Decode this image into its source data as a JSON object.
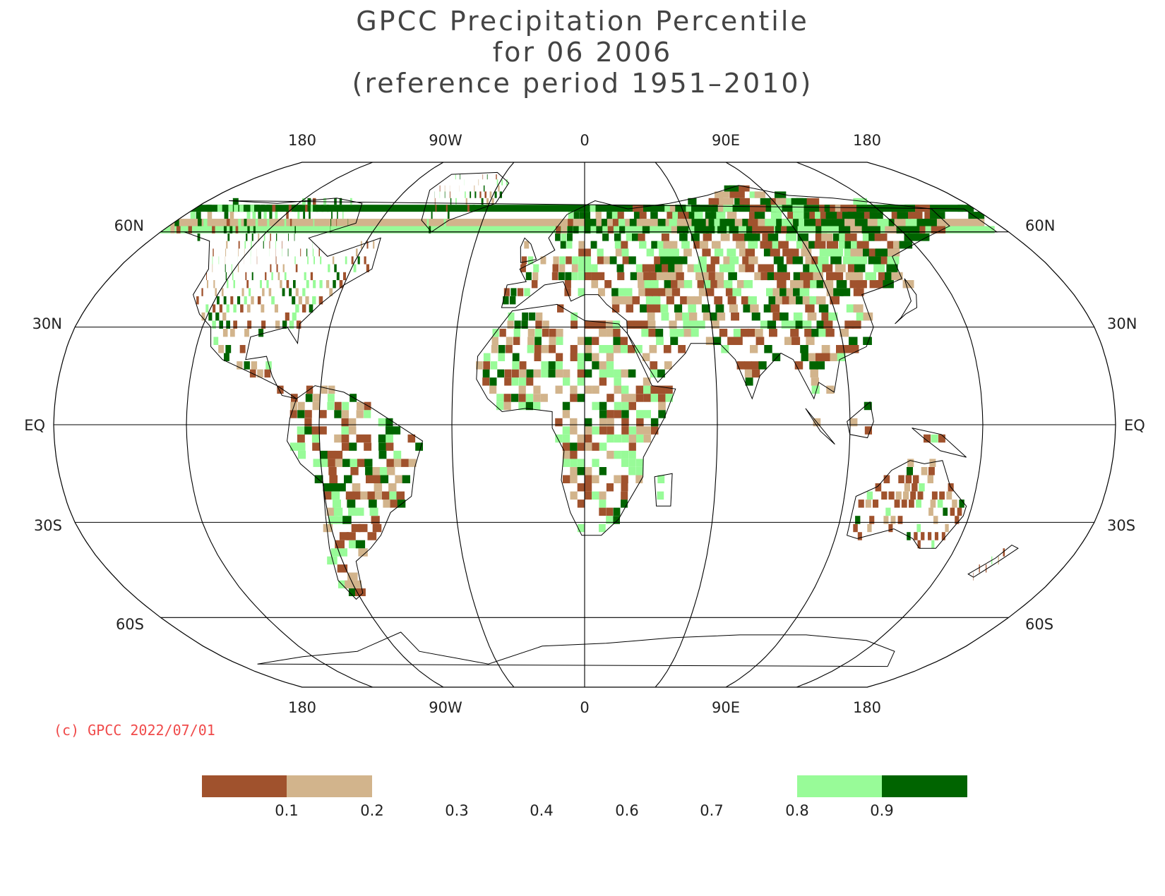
{
  "title": {
    "line1": "GPCC Precipitation Percentile",
    "line2": "for 06 2006",
    "line3": "(reference period 1951–2010)"
  },
  "map": {
    "projection": "Robinson",
    "meridian_labels": [
      "180",
      "90W",
      "0",
      "90E",
      "180"
    ],
    "parallel_labels": [
      "60N",
      "30N",
      "EQ",
      "30S",
      "60S"
    ]
  },
  "copyright": "(c) GPCC 2022/07/01",
  "legend": {
    "tick_labels": [
      "0.1",
      "0.2",
      "0.3",
      "0.4",
      "0.6",
      "0.7",
      "0.8",
      "0.9"
    ],
    "swatches": [
      {
        "range": "< 0.1",
        "color": "#a0522d"
      },
      {
        "range": "0.1 – 0.2",
        "color": "#d2b48c"
      },
      {
        "range": "0.8 – 0.9",
        "color": "#98fb98"
      },
      {
        "range": "> 0.9",
        "color": "#006400"
      }
    ]
  },
  "colors": {
    "very_dry": "#a0522d",
    "dry": "#d2b48c",
    "wet": "#98fb98",
    "very_wet": "#006400"
  }
}
